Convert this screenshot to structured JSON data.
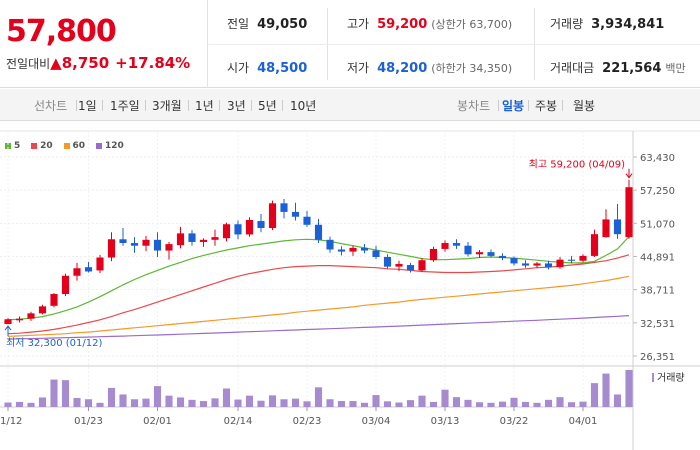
{
  "quote": {
    "price": "57,800",
    "change_label": "전일대비",
    "change_arrow": "▲",
    "change_value": "8,750",
    "change_pct": "+17.84%"
  },
  "stats": {
    "prev_close": {
      "label": "전일",
      "value": "49,050"
    },
    "high": {
      "label": "고가",
      "value": "59,200",
      "sub": "(상한가 63,700)"
    },
    "volume": {
      "label": "거래량",
      "value": "3,934,841"
    },
    "open": {
      "label": "시가",
      "value": "48,500"
    },
    "low": {
      "label": "저가",
      "value": "48,200",
      "sub": "(하한가 34,350)"
    },
    "amount": {
      "label": "거래대금",
      "value": "221,564",
      "unit": "백만"
    }
  },
  "line_tabs": {
    "label": "선차트",
    "items": [
      "1일",
      "1주일",
      "3개월",
      "1년",
      "3년",
      "5년",
      "10년"
    ]
  },
  "candle_tabs": {
    "label": "봉차트",
    "items": [
      "일봉",
      "주봉",
      "월봉"
    ],
    "active": "일봉"
  },
  "colors": {
    "up": "#e4001b",
    "down": "#1a61d6",
    "ma5": "#5cb833",
    "ma20": "#e84a4a",
    "ma60": "#f39a2b",
    "ma120": "#9b6bc9",
    "volume": "#a68bd1"
  },
  "chart_data": {
    "type": "candlestick",
    "ma_legend": [
      "5",
      "20",
      "60",
      "120"
    ],
    "y_ticks": [
      "63,430",
      "57,250",
      "51,070",
      "44,891",
      "38,711",
      "32,531",
      "26,351"
    ],
    "y_tick_values": [
      63430,
      57250,
      51070,
      44891,
      38711,
      32531,
      26351
    ],
    "x_tick_labels": [
      "01/12",
      "01/23",
      "02/01",
      "02/14",
      "02/23",
      "03/04",
      "03/13",
      "03/22",
      "04/01"
    ],
    "x_tick_index": [
      0,
      7,
      13,
      20,
      26,
      32,
      38,
      44,
      50
    ],
    "high_note": "최고 59,200 (04/09)",
    "low_note": "최저 32,300 (01/12)",
    "volume_label": "거래량",
    "candles": [
      [
        32300,
        33400,
        32300,
        33200
      ],
      [
        33000,
        33700,
        32600,
        33300
      ],
      [
        33300,
        34600,
        32900,
        34300
      ],
      [
        34300,
        35900,
        34100,
        35600
      ],
      [
        35700,
        38100,
        35400,
        37900
      ],
      [
        37900,
        41700,
        37500,
        41300
      ],
      [
        41300,
        43700,
        40400,
        42700
      ],
      [
        42900,
        43900,
        41900,
        42100
      ],
      [
        42300,
        45200,
        41800,
        44700
      ],
      [
        44700,
        49400,
        44000,
        48100
      ],
      [
        48100,
        50200,
        46900,
        47400
      ],
      [
        47400,
        48500,
        45600,
        46900
      ],
      [
        46900,
        48700,
        45900,
        48000
      ],
      [
        48000,
        49400,
        44800,
        46000
      ],
      [
        46000,
        47600,
        44300,
        47200
      ],
      [
        47000,
        50400,
        46400,
        49200
      ],
      [
        49200,
        49800,
        46900,
        47600
      ],
      [
        47600,
        48300,
        46700,
        48000
      ],
      [
        48000,
        49900,
        46900,
        48500
      ],
      [
        48300,
        51200,
        47700,
        50900
      ],
      [
        50900,
        51600,
        48100,
        49000
      ],
      [
        49000,
        52200,
        48600,
        51700
      ],
      [
        51500,
        52800,
        49400,
        50200
      ],
      [
        50200,
        55300,
        49800,
        54800
      ],
      [
        54800,
        55600,
        52000,
        53200
      ],
      [
        53200,
        54900,
        51600,
        52300
      ],
      [
        52300,
        53400,
        50400,
        50800
      ],
      [
        50800,
        51900,
        47400,
        48000
      ],
      [
        48000,
        48600,
        45600,
        46200
      ],
      [
        46200,
        46800,
        45100,
        45800
      ],
      [
        45800,
        46900,
        45000,
        46500
      ],
      [
        46500,
        47200,
        45500,
        46000
      ],
      [
        46000,
        46900,
        44400,
        44800
      ],
      [
        44800,
        45300,
        42600,
        43000
      ],
      [
        43000,
        44100,
        42200,
        43500
      ],
      [
        43300,
        43700,
        41900,
        42300
      ],
      [
        42300,
        44600,
        42000,
        44200
      ],
      [
        44200,
        46700,
        43900,
        46300
      ],
      [
        46300,
        47900,
        45800,
        47400
      ],
      [
        47400,
        48100,
        46300,
        46900
      ],
      [
        46900,
        47600,
        44900,
        45300
      ],
      [
        45300,
        46100,
        44600,
        45700
      ],
      [
        45700,
        46200,
        44700,
        45000
      ],
      [
        45000,
        45500,
        44200,
        44600
      ],
      [
        44600,
        44900,
        43200,
        43600
      ],
      [
        43600,
        44200,
        42800,
        43200
      ],
      [
        43200,
        43900,
        42700,
        43600
      ],
      [
        43600,
        44100,
        42500,
        42900
      ],
      [
        42900,
        44800,
        42600,
        44300
      ],
      [
        44300,
        45000,
        43600,
        44100
      ],
      [
        44100,
        45300,
        43800,
        45000
      ],
      [
        45000,
        49900,
        44800,
        49050
      ],
      [
        48500,
        53700,
        48400,
        51800
      ],
      [
        51800,
        54700,
        48200,
        49050
      ],
      [
        48500,
        59200,
        48200,
        57800
      ]
    ],
    "ma5": [
      33100,
      33200,
      33400,
      33700,
      34200,
      34800,
      35500,
      36400,
      37400,
      38500,
      39600,
      40600,
      41500,
      42300,
      43100,
      43800,
      44500,
      45100,
      45600,
      46100,
      46500,
      46900,
      47200,
      47500,
      47800,
      48000,
      48100,
      48000,
      47700,
      47300,
      46900,
      46500,
      46100,
      45700,
      45300,
      44900,
      44500,
      44300,
      44300,
      44400,
      44500,
      44700,
      44800,
      44700,
      44600,
      44400,
      44200,
      44000,
      43800,
      43700,
      43700,
      44000,
      45100,
      46300,
      48600
    ],
    "ma20": [
      30500,
      30600,
      30800,
      31000,
      31300,
      31700,
      32100,
      32600,
      33100,
      33700,
      34400,
      35000,
      35700,
      36400,
      37100,
      37800,
      38500,
      39200,
      39900,
      40600,
      41200,
      41700,
      42100,
      42500,
      42800,
      43000,
      43100,
      43200,
      43200,
      43100,
      43000,
      42900,
      42800,
      42600,
      42500,
      42300,
      42100,
      42000,
      41900,
      41900,
      41900,
      42000,
      42100,
      42200,
      42400,
      42600,
      42800,
      42900,
      43100,
      43300,
      43500,
      43800,
      44100,
      44600,
      45200
    ],
    "ma60": [
      30000,
      30100,
      30200,
      30300,
      30400,
      30500,
      30700,
      30800,
      31000,
      31200,
      31400,
      31600,
      31800,
      32000,
      32200,
      32400,
      32600,
      32800,
      33000,
      33200,
      33400,
      33600,
      33800,
      34000,
      34200,
      34500,
      34700,
      34900,
      35100,
      35300,
      35500,
      35800,
      36000,
      36200,
      36400,
      36700,
      36900,
      37100,
      37300,
      37500,
      37700,
      37900,
      38100,
      38300,
      38500,
      38700,
      38900,
      39100,
      39300,
      39500,
      39800,
      40100,
      40400,
      40800,
      41200
    ],
    "ma120": [
      29500,
      29550,
      29600,
      29650,
      29700,
      29760,
      29820,
      29880,
      29940,
      30000,
      30060,
      30130,
      30200,
      30270,
      30340,
      30410,
      30480,
      30560,
      30640,
      30720,
      30800,
      30880,
      30960,
      31040,
      31120,
      31200,
      31280,
      31360,
      31440,
      31520,
      31600,
      31680,
      31760,
      31840,
      31930,
      32020,
      32110,
      32200,
      32290,
      32380,
      32470,
      32560,
      32650,
      32740,
      32830,
      32920,
      33010,
      33110,
      33210,
      33310,
      33410,
      33520,
      33630,
      33750,
      33870
    ],
    "volume": [
      150,
      170,
      140,
      320,
      920,
      900,
      300,
      260,
      140,
      640,
      420,
      260,
      280,
      700,
      380,
      320,
      240,
      200,
      290,
      620,
      250,
      380,
      210,
      390,
      260,
      280,
      190,
      660,
      260,
      200,
      200,
      140,
      400,
      190,
      150,
      230,
      380,
      170,
      580,
      330,
      240,
      160,
      140,
      180,
      310,
      170,
      140,
      240,
      330,
      160,
      180,
      800,
      1120,
      420,
      1240
    ]
  }
}
